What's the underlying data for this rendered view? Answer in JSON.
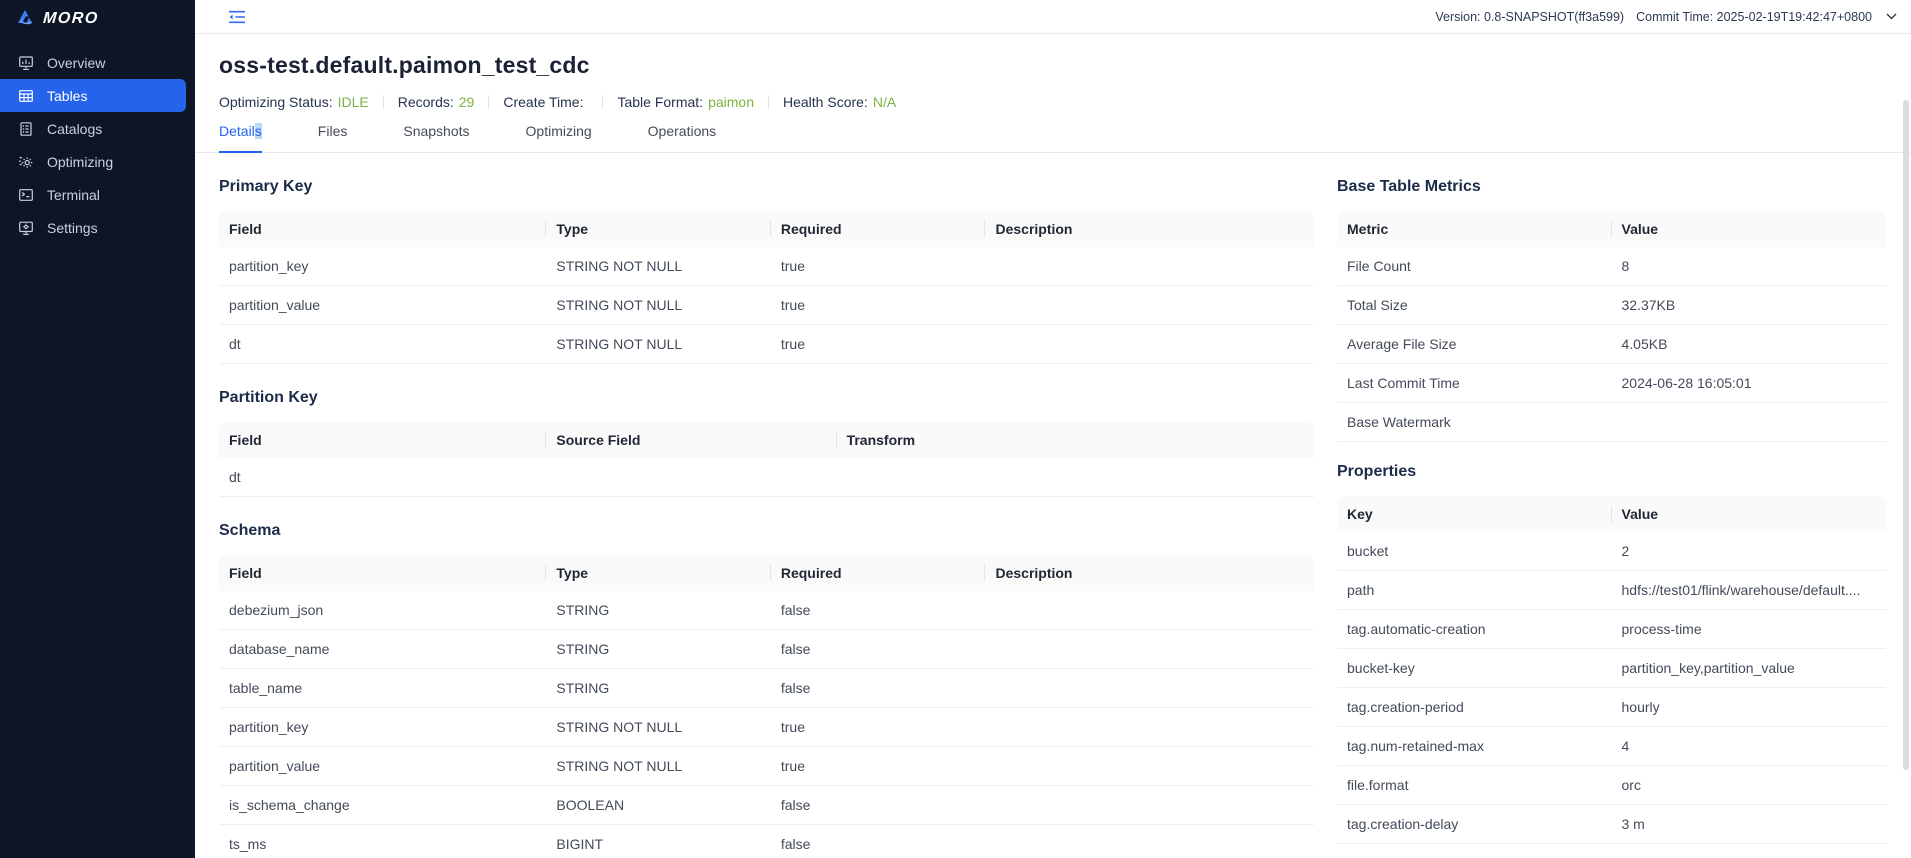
{
  "colors": {
    "accent": "#2563eb",
    "success": "#7cb342",
    "sidebar_bg": "#0d1626",
    "selection": "#b9d7ff"
  },
  "sidebar": {
    "brand": "MORO",
    "items": [
      {
        "label": "Overview"
      },
      {
        "label": "Tables"
      },
      {
        "label": "Catalogs"
      },
      {
        "label": "Optimizing"
      },
      {
        "label": "Terminal"
      },
      {
        "label": "Settings"
      }
    ]
  },
  "topbar": {
    "version_text": "Version: 0.8-SNAPSHOT(ff3a599)",
    "commit_text": "Commit Time: 2025-02-19T19:42:47+0800"
  },
  "header": {
    "title": "oss-test.default.paimon_test_cdc",
    "status": [
      {
        "label": "Optimizing Status:",
        "value": "IDLE"
      },
      {
        "label": "Records:",
        "value": "29"
      },
      {
        "label": "Create Time:",
        "value": ""
      },
      {
        "label": "Table Format:",
        "value": "paimon"
      },
      {
        "label": "Health Score:",
        "value": "N/A"
      }
    ]
  },
  "tabs": {
    "active_prefix": "Detail",
    "active_selected": "s",
    "items": [
      {
        "label": "Files"
      },
      {
        "label": "Snapshots"
      },
      {
        "label": "Optimizing"
      },
      {
        "label": "Operations"
      }
    ]
  },
  "sections": {
    "primary_key": {
      "title": "Primary Key",
      "columns": [
        "Field",
        "Type",
        "Required",
        "Description"
      ],
      "rows": [
        [
          "partition_key",
          "STRING NOT NULL",
          "true",
          ""
        ],
        [
          "partition_value",
          "STRING NOT NULL",
          "true",
          ""
        ],
        [
          "dt",
          "STRING NOT NULL",
          "true",
          ""
        ]
      ]
    },
    "partition_key": {
      "title": "Partition Key",
      "columns": [
        "Field",
        "Source Field",
        "Transform"
      ],
      "rows": [
        [
          "dt",
          "",
          ""
        ]
      ]
    },
    "schema": {
      "title": "Schema",
      "columns": [
        "Field",
        "Type",
        "Required",
        "Description"
      ],
      "rows": [
        [
          "debezium_json",
          "STRING",
          "false",
          ""
        ],
        [
          "database_name",
          "STRING",
          "false",
          ""
        ],
        [
          "table_name",
          "STRING",
          "false",
          ""
        ],
        [
          "partition_key",
          "STRING NOT NULL",
          "true",
          ""
        ],
        [
          "partition_value",
          "STRING NOT NULL",
          "true",
          ""
        ],
        [
          "is_schema_change",
          "BOOLEAN",
          "false",
          ""
        ],
        [
          "ts_ms",
          "BIGINT",
          "false",
          ""
        ]
      ]
    },
    "metrics": {
      "title": "Base Table Metrics",
      "columns": [
        "Metric",
        "Value"
      ],
      "rows": [
        [
          "File Count",
          "8"
        ],
        [
          "Total Size",
          "32.37KB"
        ],
        [
          "Average File Size",
          "4.05KB"
        ],
        [
          "Last Commit Time",
          "2024-06-28 16:05:01"
        ],
        [
          "Base Watermark",
          ""
        ]
      ]
    },
    "properties": {
      "title": "Properties",
      "columns": [
        "Key",
        "Value"
      ],
      "rows": [
        [
          "bucket",
          "2"
        ],
        [
          "path",
          "hdfs://test01/flink/warehouse/default...."
        ],
        [
          "tag.automatic-creation",
          "process-time"
        ],
        [
          "bucket-key",
          "partition_key,partition_value"
        ],
        [
          "tag.creation-period",
          "hourly"
        ],
        [
          "tag.num-retained-max",
          "4"
        ],
        [
          "file.format",
          "orc"
        ],
        [
          "tag.creation-delay",
          "3 m"
        ]
      ]
    }
  }
}
